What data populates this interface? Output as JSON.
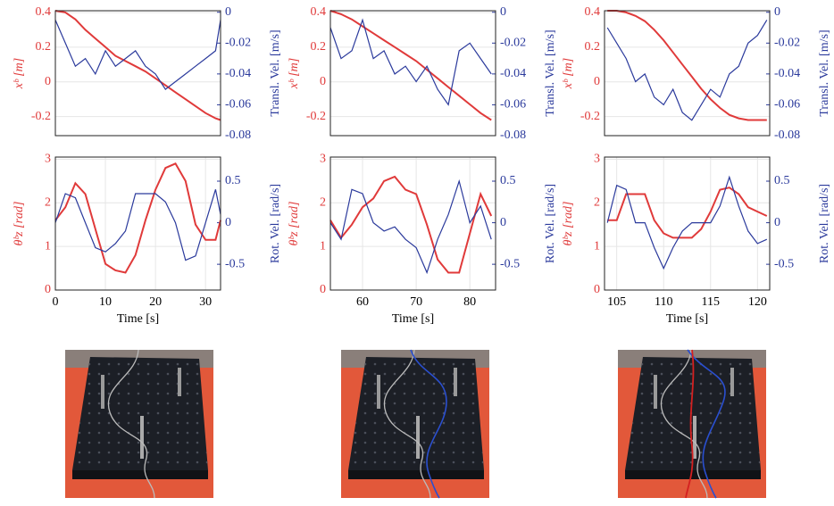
{
  "chart_data": [
    {
      "type": "line",
      "y_label": "xᵇ [m]",
      "y2_label": "Transl. Vel. [m/s]",
      "x": [
        0,
        2,
        4,
        6,
        8,
        10,
        12,
        14,
        16,
        18,
        20,
        22,
        24,
        26,
        28,
        30,
        32,
        33
      ],
      "xlim": [
        0,
        33
      ],
      "ylim": [
        -0.31,
        0.41
      ],
      "yticks": [
        -0.2,
        0,
        0.2,
        0.4
      ],
      "y2lim": [
        -0.08,
        0.001
      ],
      "y2ticks": [
        -0.08,
        -0.06,
        -0.04,
        -0.02,
        0
      ],
      "grid": true,
      "series": [
        {
          "color": "#e03a3a",
          "values": [
            0.41,
            0.4,
            0.36,
            0.3,
            0.25,
            0.2,
            0.15,
            0.12,
            0.09,
            0.06,
            0.02,
            -0.02,
            -0.06,
            -0.1,
            -0.14,
            -0.18,
            -0.21,
            -0.22
          ]
        },
        {
          "color": "#2b3a9c",
          "axis": "y2",
          "values": [
            -0.005,
            -0.02,
            -0.035,
            -0.03,
            -0.04,
            -0.025,
            -0.035,
            -0.03,
            -0.025,
            -0.035,
            -0.04,
            -0.05,
            -0.045,
            -0.04,
            -0.035,
            -0.03,
            -0.025,
            -0.005
          ]
        }
      ]
    },
    {
      "type": "line",
      "y_label": "xᵇ [m]",
      "y2_label": "Transl. Vel. [m/s]",
      "x": [
        54,
        56,
        58,
        60,
        62,
        64,
        66,
        68,
        70,
        72,
        74,
        76,
        78,
        80,
        82,
        84
      ],
      "xlim": [
        54,
        84.8
      ],
      "ylim": [
        -0.31,
        0.41
      ],
      "yticks": [
        -0.2,
        0,
        0.2,
        0.4
      ],
      "y2lim": [
        -0.08,
        0.001
      ],
      "y2ticks": [
        -0.08,
        -0.06,
        -0.04,
        -0.02,
        0
      ],
      "grid": true,
      "series": [
        {
          "color": "#e03a3a",
          "values": [
            0.41,
            0.39,
            0.36,
            0.32,
            0.28,
            0.24,
            0.2,
            0.16,
            0.12,
            0.07,
            0.02,
            -0.03,
            -0.08,
            -0.13,
            -0.18,
            -0.22
          ]
        },
        {
          "color": "#2b3a9c",
          "axis": "y2",
          "values": [
            -0.01,
            -0.03,
            -0.025,
            -0.005,
            -0.03,
            -0.025,
            -0.04,
            -0.035,
            -0.045,
            -0.035,
            -0.05,
            -0.06,
            -0.025,
            -0.02,
            -0.03,
            -0.04
          ]
        }
      ]
    },
    {
      "type": "line",
      "y_label": "xᵇ [m]",
      "y2_label": "Transl. Vel. [m/s]",
      "x": [
        104,
        105,
        106,
        107,
        108,
        109,
        110,
        111,
        112,
        113,
        114,
        115,
        116,
        117,
        118,
        119,
        120,
        121
      ],
      "xlim": [
        103.7,
        121.3
      ],
      "ylim": [
        -0.31,
        0.41
      ],
      "yticks": [
        -0.2,
        0,
        0.2,
        0.4
      ],
      "y2lim": [
        -0.08,
        0.001
      ],
      "y2ticks": [
        -0.08,
        -0.06,
        -0.04,
        -0.02,
        0
      ],
      "grid": true,
      "series": [
        {
          "color": "#e03a3a",
          "values": [
            0.41,
            0.41,
            0.4,
            0.38,
            0.35,
            0.3,
            0.24,
            0.17,
            0.1,
            0.03,
            -0.04,
            -0.1,
            -0.15,
            -0.19,
            -0.21,
            -0.22,
            -0.22,
            -0.22
          ]
        },
        {
          "color": "#2b3a9c",
          "axis": "y2",
          "values": [
            -0.01,
            -0.02,
            -0.03,
            -0.045,
            -0.04,
            -0.055,
            -0.06,
            -0.05,
            -0.065,
            -0.07,
            -0.06,
            -0.05,
            -0.055,
            -0.04,
            -0.035,
            -0.02,
            -0.015,
            -0.005
          ]
        }
      ]
    },
    {
      "type": "line",
      "y_label": "θᵇz [rad]",
      "y2_label": "Rot. Vel. [rad/s]",
      "x_label": "Time [s]",
      "x": [
        0,
        2,
        4,
        6,
        8,
        10,
        12,
        14,
        16,
        18,
        20,
        22,
        24,
        26,
        28,
        30,
        32,
        33
      ],
      "xlim": [
        0,
        33
      ],
      "xticks": [
        0,
        10,
        20,
        30
      ],
      "ylim": [
        0,
        3.05
      ],
      "yticks": [
        0,
        1,
        2,
        3
      ],
      "y2lim": [
        -0.81,
        0.79
      ],
      "y2ticks": [
        -0.5,
        0,
        0.5
      ],
      "grid": true,
      "series": [
        {
          "color": "#e03a3a",
          "values": [
            1.6,
            1.9,
            2.45,
            2.2,
            1.4,
            0.6,
            0.45,
            0.4,
            0.8,
            1.6,
            2.3,
            2.8,
            2.9,
            2.5,
            1.5,
            1.15,
            1.15,
            1.6
          ]
        },
        {
          "color": "#2b3a9c",
          "axis": "y2",
          "values": [
            0,
            0.35,
            0.3,
            0,
            -0.3,
            -0.35,
            -0.25,
            -0.1,
            0.35,
            0.35,
            0.35,
            0.25,
            0,
            -0.45,
            -0.4,
            0,
            0.4,
            0.1
          ]
        }
      ]
    },
    {
      "type": "line",
      "y_label": "θᵇz [rad]",
      "y2_label": "Rot. Vel. [rad/s]",
      "x_label": "Time [s]",
      "x": [
        54,
        56,
        58,
        60,
        62,
        64,
        66,
        68,
        70,
        72,
        74,
        76,
        78,
        80,
        82,
        84
      ],
      "xlim": [
        54,
        84.8
      ],
      "xticks": [
        60,
        70,
        80
      ],
      "ylim": [
        0,
        3.05
      ],
      "yticks": [
        0,
        1,
        2,
        3
      ],
      "y2lim": [
        -0.81,
        0.79
      ],
      "y2ticks": [
        -0.5,
        0,
        0.5
      ],
      "grid": true,
      "series": [
        {
          "color": "#e03a3a",
          "values": [
            1.6,
            1.2,
            1.5,
            1.9,
            2.1,
            2.5,
            2.6,
            2.3,
            2.2,
            1.5,
            0.7,
            0.4,
            0.4,
            1.3,
            2.2,
            1.7
          ]
        },
        {
          "color": "#2b3a9c",
          "axis": "y2",
          "values": [
            0,
            -0.2,
            0.4,
            0.35,
            0,
            -0.1,
            -0.05,
            -0.2,
            -0.3,
            -0.6,
            -0.2,
            0.1,
            0.5,
            0,
            0.2,
            -0.2
          ]
        }
      ]
    },
    {
      "type": "line",
      "y_label": "θᵇz [rad]",
      "y2_label": "Rot. Vel. [rad/s]",
      "x_label": "Time [s]",
      "x": [
        104,
        105,
        106,
        107,
        108,
        109,
        110,
        111,
        112,
        113,
        114,
        115,
        116,
        117,
        118,
        119,
        120,
        121
      ],
      "xlim": [
        103.7,
        121.3
      ],
      "xticks": [
        105,
        110,
        115,
        120
      ],
      "ylim": [
        0,
        3.05
      ],
      "yticks": [
        0,
        1,
        2,
        3
      ],
      "y2lim": [
        -0.81,
        0.79
      ],
      "y2ticks": [
        -0.5,
        0,
        0.5
      ],
      "grid": true,
      "series": [
        {
          "color": "#e03a3a",
          "values": [
            1.6,
            1.6,
            2.2,
            2.2,
            2.2,
            1.6,
            1.3,
            1.2,
            1.2,
            1.2,
            1.4,
            1.8,
            2.3,
            2.35,
            2.2,
            1.9,
            1.8,
            1.7
          ]
        },
        {
          "color": "#2b3a9c",
          "axis": "y2",
          "values": [
            0,
            0.45,
            0.4,
            0,
            0,
            -0.3,
            -0.55,
            -0.3,
            -0.1,
            0,
            0,
            0,
            0.2,
            0.55,
            0.2,
            -0.1,
            -0.25,
            -0.2
          ]
        }
      ]
    }
  ]
}
